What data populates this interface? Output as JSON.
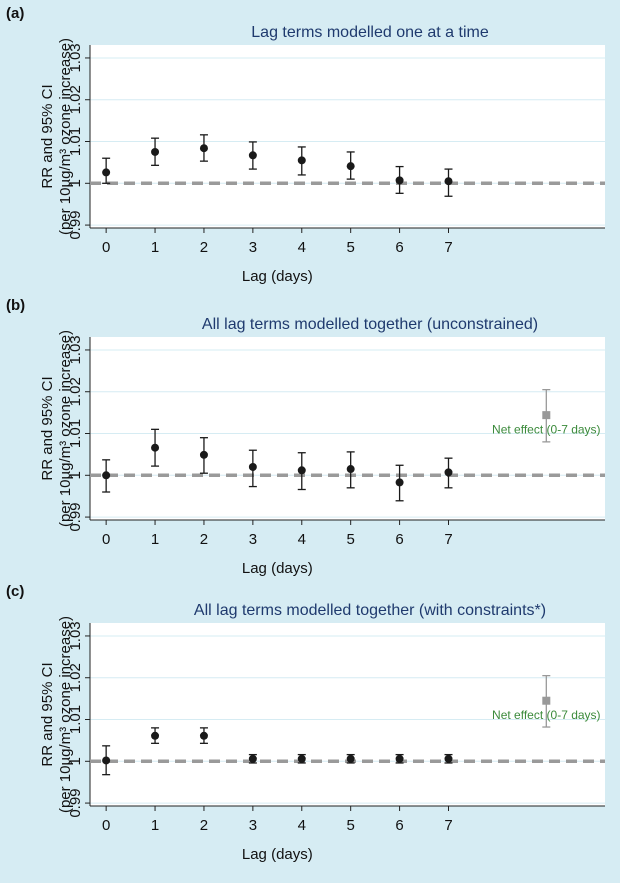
{
  "chart_data": [
    {
      "type": "errorbar",
      "panel_label": "(a)",
      "title": "Lag terms modelled one at a time",
      "xlabel": "Lag (days)",
      "ylabel": [
        "RR and 95% CI",
        "(per 10µg/m³ ozone increase)"
      ],
      "x": [
        0,
        1,
        2,
        3,
        4,
        5,
        6,
        7
      ],
      "values": [
        1.0026,
        1.0075,
        1.0084,
        1.0067,
        1.0055,
        1.0041,
        1.0007,
        1.0005
      ],
      "lower": [
        1.0,
        1.0043,
        1.0053,
        1.0034,
        1.002,
        1.001,
        0.9976,
        0.9969
      ],
      "upper": [
        1.006,
        1.0108,
        1.0116,
        1.0099,
        1.0087,
        1.0075,
        1.004,
        1.0034
      ],
      "color": "#1a1a1a",
      "reference_line": 1,
      "xlim": [
        -0.33,
        10.2
      ],
      "xticks": [
        0,
        1,
        2,
        3,
        4,
        5,
        6,
        7
      ],
      "ylim": [
        0.9893,
        1.0331
      ],
      "yticks": [
        0.99,
        1,
        1.01,
        1.02,
        1.03
      ],
      "grid": true
    },
    {
      "type": "errorbar",
      "panel_label": "(b)",
      "title": "All lag terms modelled together (unconstrained)",
      "xlabel": "Lag (days)",
      "ylabel": [
        "RR and 95% CI",
        "(per 10µg/m³ ozone increase)"
      ],
      "x": [
        0,
        1,
        2,
        3,
        4,
        5,
        6,
        7
      ],
      "values": [
        1.0,
        1.0066,
        1.0049,
        1.002,
        1.0012,
        1.0015,
        0.9983,
        1.0007
      ],
      "lower": [
        0.996,
        1.0022,
        1.0005,
        0.9973,
        0.9966,
        0.997,
        0.9939,
        0.997
      ],
      "upper": [
        1.0037,
        1.011,
        1.009,
        1.006,
        1.0054,
        1.0056,
        1.0024,
        1.0041
      ],
      "color": "#1a1a1a",
      "reference_line": 1,
      "net_effect": {
        "label": "Net effect (0-7 days)",
        "x": 9,
        "value": 1.0144,
        "lower": 1.008,
        "upper": 1.0205,
        "color": "#999999"
      },
      "xlim": [
        -0.33,
        10.2
      ],
      "xticks": [
        0,
        1,
        2,
        3,
        4,
        5,
        6,
        7
      ],
      "ylim": [
        0.9893,
        1.0331
      ],
      "yticks": [
        0.99,
        1,
        1.01,
        1.02,
        1.03
      ],
      "grid": true
    },
    {
      "type": "errorbar",
      "panel_label": "(c)",
      "title": "All lag terms modelled together (with constraints*)",
      "xlabel": "Lag (days)",
      "ylabel": [
        "RR and 95% CI",
        "(per 10µg/m³ ozone increase)"
      ],
      "x": [
        0,
        1,
        2,
        3,
        4,
        5,
        6,
        7
      ],
      "values": [
        1.0002,
        1.0061,
        1.0061,
        1.0006,
        1.0006,
        1.0006,
        1.0006,
        1.0006
      ],
      "lower": [
        0.9968,
        1.0043,
        1.0043,
        0.9996,
        0.9996,
        0.9996,
        0.9996,
        0.9996
      ],
      "upper": [
        1.0037,
        1.008,
        1.008,
        1.0016,
        1.0016,
        1.0016,
        1.0016,
        1.0016
      ],
      "color": "#1a1a1a",
      "reference_line": 1,
      "net_effect": {
        "label": "Net effect (0-7 days)",
        "x": 9,
        "value": 1.0145,
        "lower": 1.0082,
        "upper": 1.0205,
        "color": "#999999"
      },
      "xlim": [
        -0.33,
        10.2
      ],
      "xticks": [
        0,
        1,
        2,
        3,
        4,
        5,
        6,
        7
      ],
      "ylim": [
        0.9893,
        1.0331
      ],
      "yticks": [
        0.99,
        1,
        1.01,
        1.02,
        1.03
      ],
      "grid": true
    }
  ]
}
